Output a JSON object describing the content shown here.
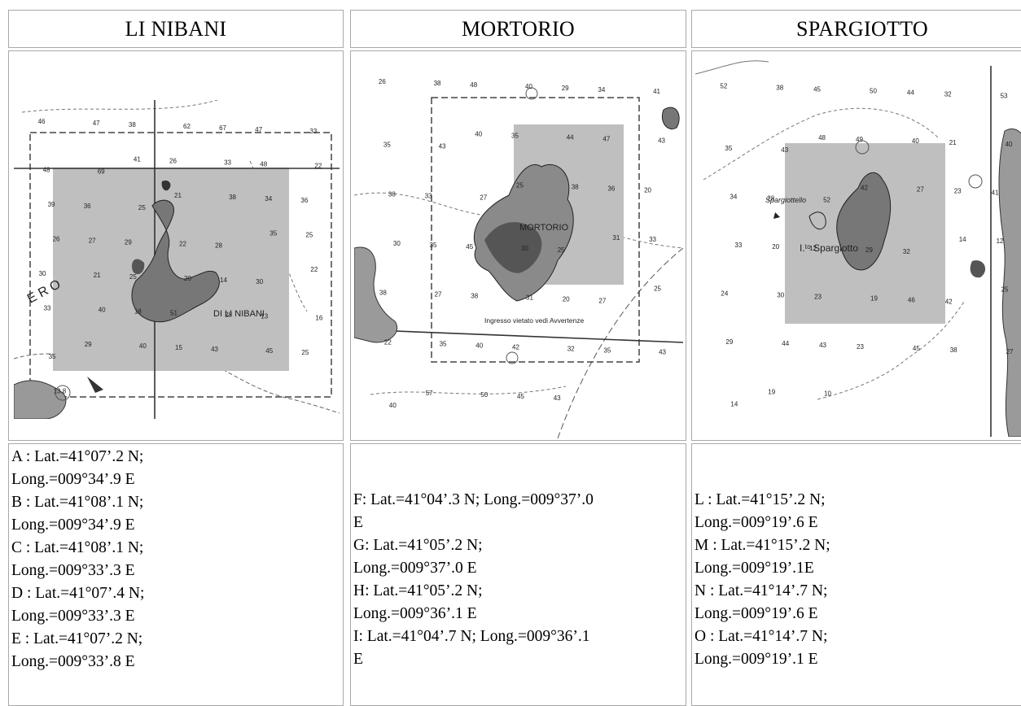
{
  "columns": [
    {
      "title": "LI NIBANI",
      "map": {
        "island_label": "DI LI NIBANI",
        "side_label": "E R O",
        "soundings": [
          "46",
          "47",
          "38",
          "62",
          "67",
          "47",
          "33",
          "48",
          "69",
          "41",
          "26",
          "33",
          "48",
          "22",
          "39",
          "36",
          "25",
          "21",
          "38",
          "34",
          "36",
          "26",
          "27",
          "29",
          "22",
          "28",
          "35",
          "25",
          "30",
          "21",
          "25",
          "20",
          "14",
          "30",
          "22",
          "33",
          "40",
          "18",
          "51",
          "28",
          "13",
          "16",
          "35",
          "29",
          "40",
          "15",
          "43",
          "45",
          "25",
          "13.8"
        ]
      },
      "points": [
        "A : Lat.=41°07’.2 N;",
        "Long.=009°34’.9 E",
        "B : Lat.=41°08’.1 N;",
        "Long.=009°34’.9 E",
        "C : Lat.=41°08’.1 N;",
        "Long.=009°33’.3 E",
        "D : Lat.=41°07’.4 N;",
        "Long.=009°33’.3 E",
        "E : Lat.=41°07’.2 N;",
        "Long.=009°33’.8 E"
      ]
    },
    {
      "title": "MORTORIO",
      "map": {
        "island_label": "MORTORIO",
        "note_label": "Ingresso vietato vedi Avvertenze",
        "soundings": [
          "26",
          "38",
          "48",
          "40",
          "29",
          "34",
          "41",
          "35",
          "43",
          "40",
          "35",
          "44",
          "47",
          "43",
          "38",
          "33",
          "27",
          "25",
          "38",
          "36",
          "20",
          "30",
          "35",
          "45",
          "30",
          "25",
          "31",
          "33",
          "38",
          "27",
          "38",
          "31",
          "20",
          "27",
          "25",
          "22",
          "35",
          "40",
          "42",
          "32",
          "35",
          "43",
          "40",
          "57",
          "50",
          "45",
          "43"
        ]
      },
      "points": [
        "F: Lat.=41°04’.3 N; Long.=009°37’.0",
        "E",
        "G: Lat.=41°05’.2 N;",
        "Long.=009°37’.0 E",
        "H: Lat.=41°05’.2 N;",
        "Long.=009°36’.1 E",
        "I: Lat.=41°04’.7 N; Long.=009°36’.1",
        "E"
      ]
    },
    {
      "title": "SPARGIOTTO",
      "map": {
        "island_label": "I.ᵗᵒ Spargiotto",
        "rock_label": "Spargiottello",
        "soundings": [
          "52",
          "38",
          "45",
          "50",
          "44",
          "32",
          "53",
          "35",
          "43",
          "48",
          "49",
          "40",
          "21",
          "40",
          "34",
          "28",
          "52",
          "42",
          "27",
          "23",
          "41",
          "33",
          "20",
          "12",
          "29",
          "32",
          "14",
          "12",
          "24",
          "30",
          "23",
          "19",
          "46",
          "42",
          "25",
          "29",
          "44",
          "43",
          "23",
          "45",
          "38",
          "27",
          "14",
          "19",
          "10"
        ]
      },
      "points": [
        "L : Lat.=41°15’.2 N;",
        "Long.=009°19’.6 E",
        "M : Lat.=41°15’.2 N;",
        "Long.=009°19’.1E",
        "N : Lat.=41°14’.7 N;",
        "Long.=009°19’.6 E",
        "O : Lat.=41°14’.7 N;",
        "Long.=009°19’.1 E"
      ]
    }
  ]
}
